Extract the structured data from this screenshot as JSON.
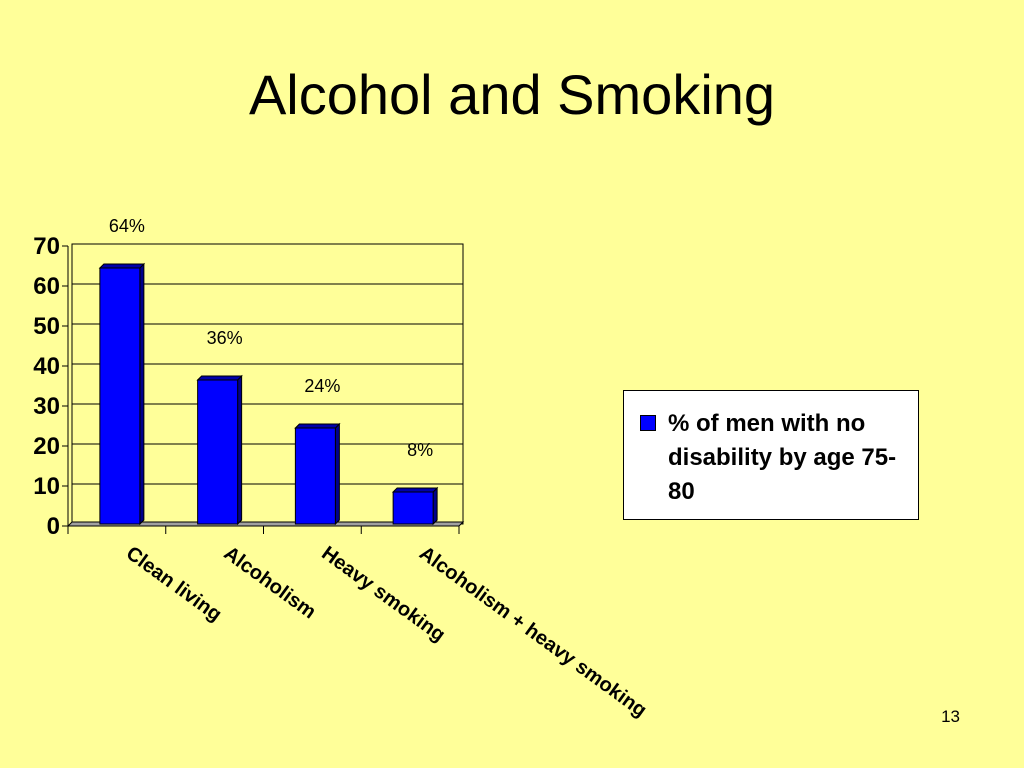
{
  "slide": {
    "title": "Alcohol and Smoking",
    "page_number": "13",
    "background_color": "#FFFF99"
  },
  "chart_data": {
    "type": "bar",
    "title": "",
    "xlabel": "",
    "ylabel": "",
    "categories": [
      "Clean living",
      "Alcoholism",
      "Heavy smoking",
      "Alcoholism + heavy smoking"
    ],
    "series": [
      {
        "name": "% of men with no disability by age 75-80",
        "values": [
          64,
          36,
          24,
          8
        ],
        "color": "#0000FF"
      }
    ],
    "data_labels": [
      "64%",
      "36%",
      "24%",
      "8%"
    ],
    "y_ticks": [
      0,
      10,
      20,
      30,
      40,
      50,
      60,
      70
    ],
    "ylim": [
      0,
      70
    ],
    "grid": true,
    "legend_position": "right",
    "style": "3d-column"
  }
}
